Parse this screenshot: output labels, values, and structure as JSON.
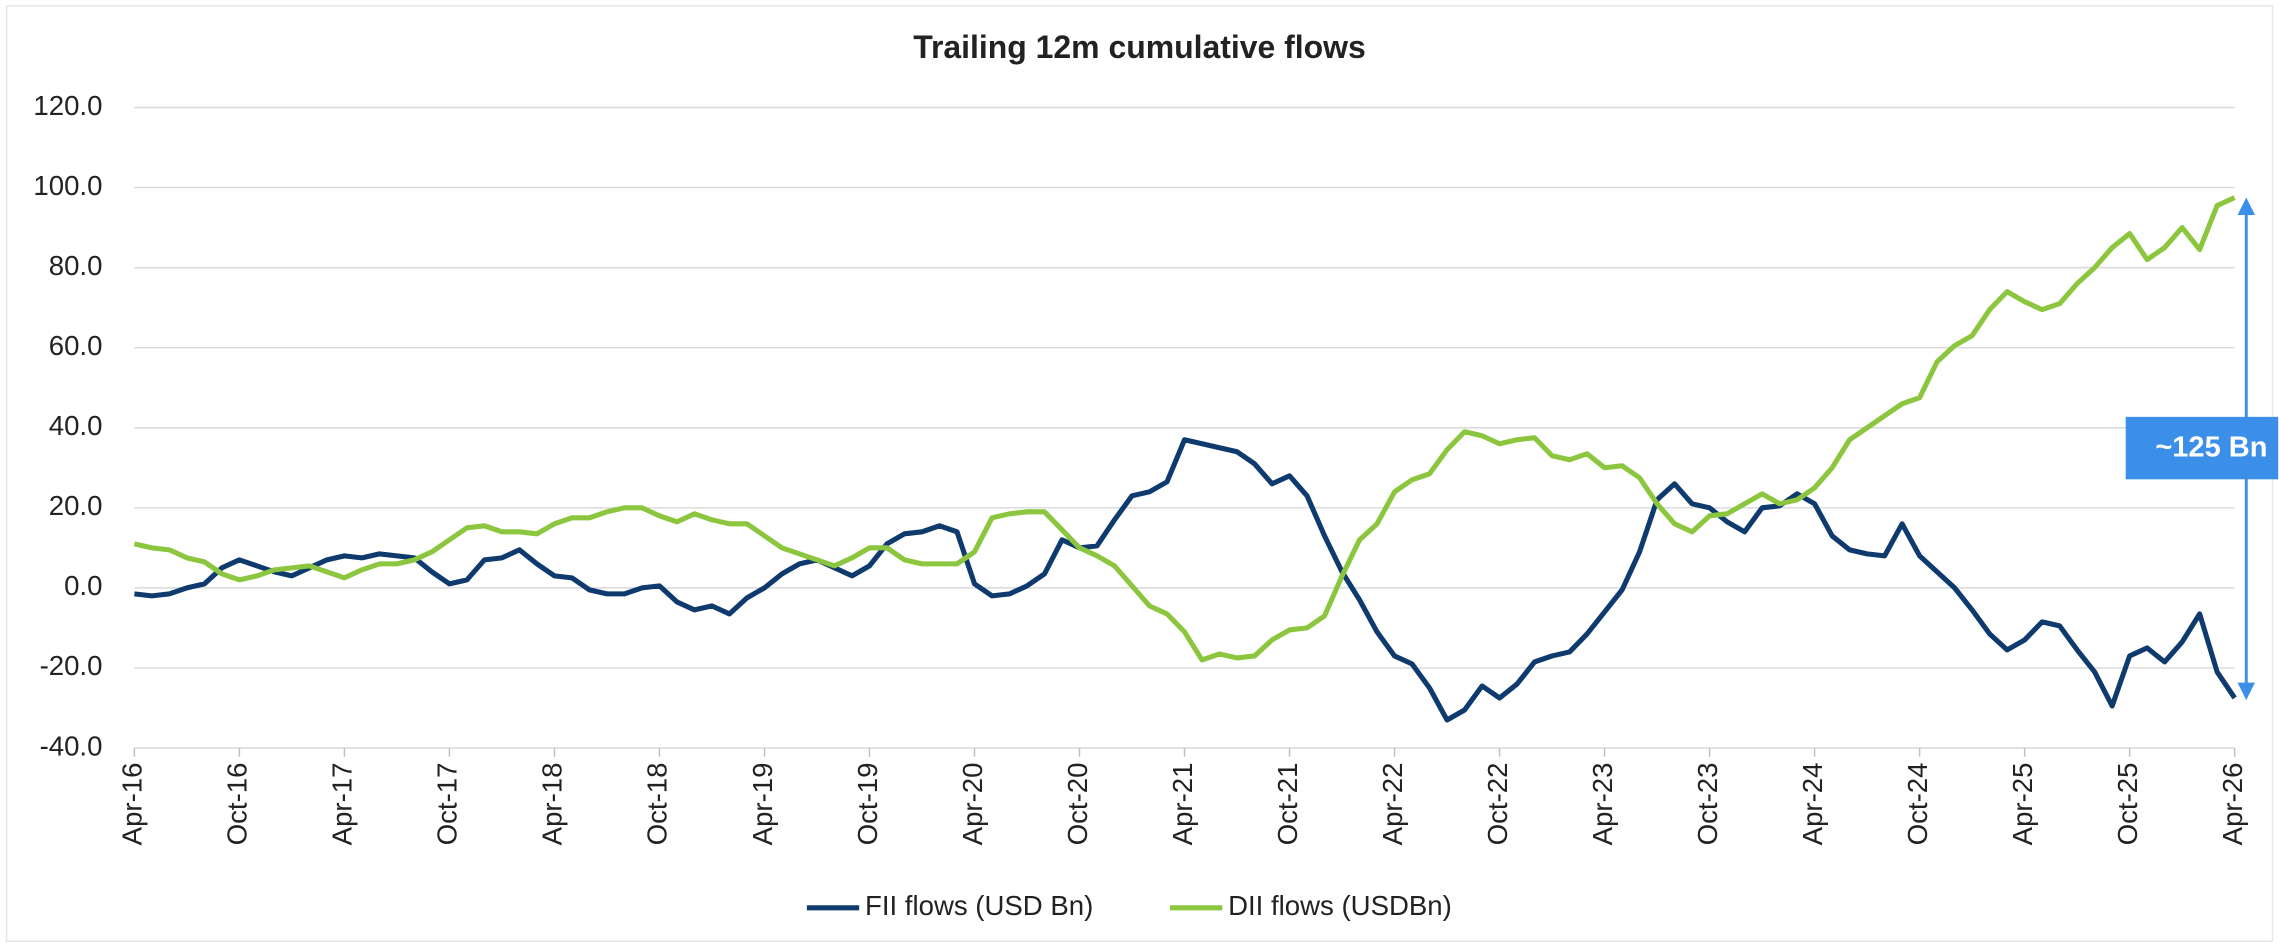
{
  "chart_data": {
    "type": "line",
    "title": "Trailing 12m cumulative flows",
    "categories": [
      "Apr-16",
      null,
      null,
      null,
      null,
      null,
      "Oct-16",
      null,
      null,
      null,
      null,
      null,
      "Apr-17",
      null,
      null,
      null,
      null,
      null,
      "Oct-17",
      null,
      null,
      null,
      null,
      null,
      "Apr-18",
      null,
      null,
      null,
      null,
      null,
      "Oct-18",
      null,
      null,
      null,
      null,
      null,
      "Apr-19",
      null,
      null,
      null,
      null,
      null,
      "Oct-19",
      null,
      null,
      null,
      null,
      null,
      "Apr-20",
      null,
      null,
      null,
      null,
      null,
      "Oct-20",
      null,
      null,
      null,
      null,
      null,
      "Apr-21",
      null,
      null,
      null,
      null,
      null,
      "Oct-21",
      null,
      null,
      null,
      null,
      null,
      "Apr-22",
      null,
      null,
      null,
      null,
      null,
      "Oct-22",
      null,
      null,
      null,
      null,
      null,
      "Apr-23",
      null,
      null,
      null,
      null,
      null,
      "Oct-23",
      null,
      null,
      null,
      null,
      null,
      "Apr-24",
      null,
      null,
      null,
      null,
      null,
      "Oct-24",
      null,
      null,
      null,
      null,
      null,
      "Apr-25",
      null,
      null,
      null,
      null,
      null,
      "Oct-25",
      null,
      null,
      null,
      null,
      null,
      "Apr-26"
    ],
    "series": [
      {
        "name": "FII flows (USD Bn)",
        "color": "#0f3a6e",
        "values": [
          -1.5,
          -2,
          -1.5,
          0,
          1,
          5,
          7,
          5.5,
          4,
          3,
          5,
          7,
          8,
          7.5,
          8.5,
          8,
          7.5,
          4,
          1,
          2,
          7,
          7.5,
          9.5,
          6,
          3,
          2.5,
          -0.5,
          -1.5,
          -1.5,
          0,
          0.5,
          -3.5,
          -5.5,
          -4.5,
          -6.5,
          -2.5,
          0,
          3.5,
          6,
          7,
          5,
          3,
          5.5,
          11,
          13.5,
          14,
          15.5,
          14,
          1,
          -2,
          -1.5,
          0.5,
          3.5,
          12,
          10,
          10.5,
          17,
          23,
          24,
          26.5,
          37,
          36,
          35,
          34,
          31,
          26,
          28,
          23,
          13,
          4,
          -3,
          -11,
          -17,
          -19,
          -25,
          -33,
          -30.5,
          -24.5,
          -27.5,
          -24,
          -18.5,
          -17,
          -16,
          -11.5,
          -6,
          -0.5,
          9,
          22,
          26,
          21,
          20,
          16.5,
          14,
          20,
          20.5,
          23.5,
          21,
          13,
          9.5,
          8.5,
          8,
          16,
          8,
          4,
          0,
          -5.5,
          -11.5,
          -15.5,
          -13,
          -8.5,
          -9.5,
          -15.5,
          -21,
          -29.5,
          -17,
          -15,
          -18.5,
          -13.5,
          -6.5,
          -21,
          -27.5
        ]
      },
      {
        "name": "DII flows (USDBn)",
        "color": "#8cc63f",
        "values": [
          11,
          10,
          9.5,
          7.5,
          6.5,
          3.5,
          2,
          3,
          4.5,
          5,
          5.5,
          4,
          2.5,
          4.5,
          6,
          6,
          7,
          9,
          12,
          15,
          15.5,
          14,
          14,
          13.5,
          16,
          17.5,
          17.5,
          19,
          20,
          20,
          18,
          16.5,
          18.5,
          17,
          16,
          16,
          13,
          10,
          8.5,
          7,
          5.5,
          7.5,
          10,
          10,
          7,
          6,
          6,
          6,
          9,
          17.5,
          18.5,
          19,
          19,
          14.5,
          10,
          8,
          5.5,
          0.5,
          -4.5,
          -6.5,
          -11,
          -18,
          -16.5,
          -17.5,
          -17,
          -13,
          -10.5,
          -10,
          -7,
          3,
          12,
          16,
          24,
          27,
          28.5,
          34.5,
          39,
          38,
          36,
          37,
          37.5,
          33,
          32,
          33.5,
          30,
          30.5,
          27.5,
          21,
          16,
          14,
          18,
          18.5,
          21,
          23.5,
          21,
          22,
          25,
          30,
          37,
          40,
          43,
          46,
          47.5,
          56.5,
          60.5,
          63,
          69.5,
          74,
          71.5,
          69.5,
          71,
          76,
          80,
          85,
          88.5,
          82,
          85,
          90,
          84.5,
          95.5,
          97.5
        ]
      }
    ],
    "ylim": [
      -40,
      120
    ],
    "yticks": [
      {
        "value": -40,
        "label": "-40.0"
      },
      {
        "value": -20,
        "label": "-20.0"
      },
      {
        "value": 0,
        "label": "0.0"
      },
      {
        "value": 20,
        "label": "20.0"
      },
      {
        "value": 40,
        "label": "40.0"
      },
      {
        "value": 60,
        "label": "60.0"
      },
      {
        "value": 80,
        "label": "80.0"
      },
      {
        "value": 100,
        "label": "100.0"
      },
      {
        "value": 120,
        "label": "120.0"
      }
    ],
    "grid": true,
    "legend": "bottom",
    "annotation": "~125 Bn"
  }
}
